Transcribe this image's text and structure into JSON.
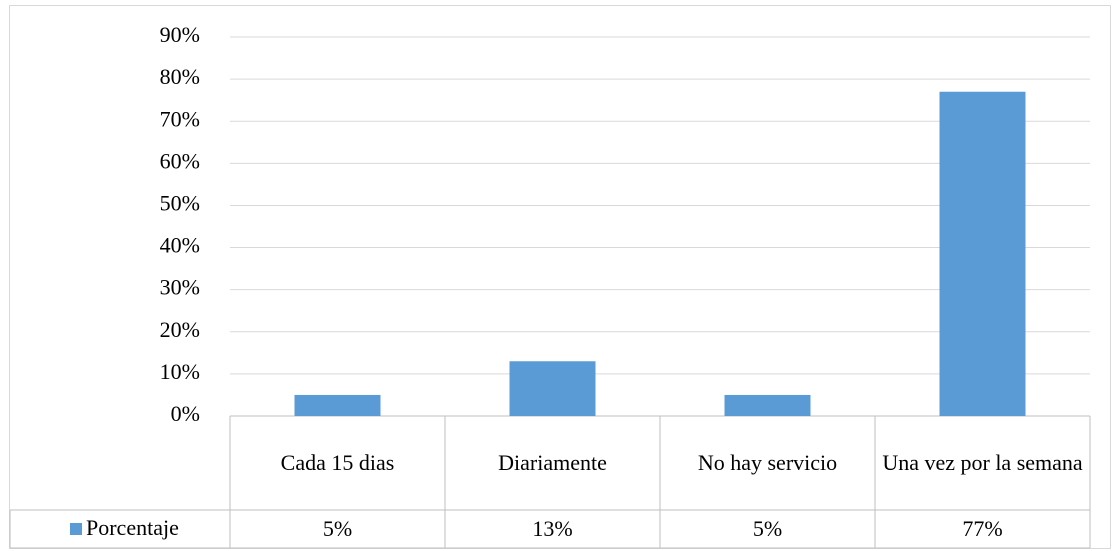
{
  "chart_data": {
    "type": "bar",
    "categories": [
      "Cada 15 dias",
      "Diariamente",
      "No hay servicio",
      "Una vez por la semana"
    ],
    "series": [
      {
        "name": "Porcentaje",
        "color": "#5b9bd5",
        "values": [
          5,
          13,
          5,
          77
        ],
        "value_labels": [
          "5%",
          "13%",
          "5%",
          "77%"
        ]
      }
    ],
    "ylim": [
      0,
      90
    ],
    "yticks": [
      {
        "value": 0,
        "label": "0%"
      },
      {
        "value": 10,
        "label": "10%"
      },
      {
        "value": 20,
        "label": "20%"
      },
      {
        "value": 30,
        "label": "30%"
      },
      {
        "value": 40,
        "label": "40%"
      },
      {
        "value": 50,
        "label": "50%"
      },
      {
        "value": 60,
        "label": "60%"
      },
      {
        "value": 70,
        "label": "70%"
      },
      {
        "value": 80,
        "label": "80%"
      },
      {
        "value": 90,
        "label": "90%"
      }
    ],
    "grid": true,
    "legend": "table"
  }
}
